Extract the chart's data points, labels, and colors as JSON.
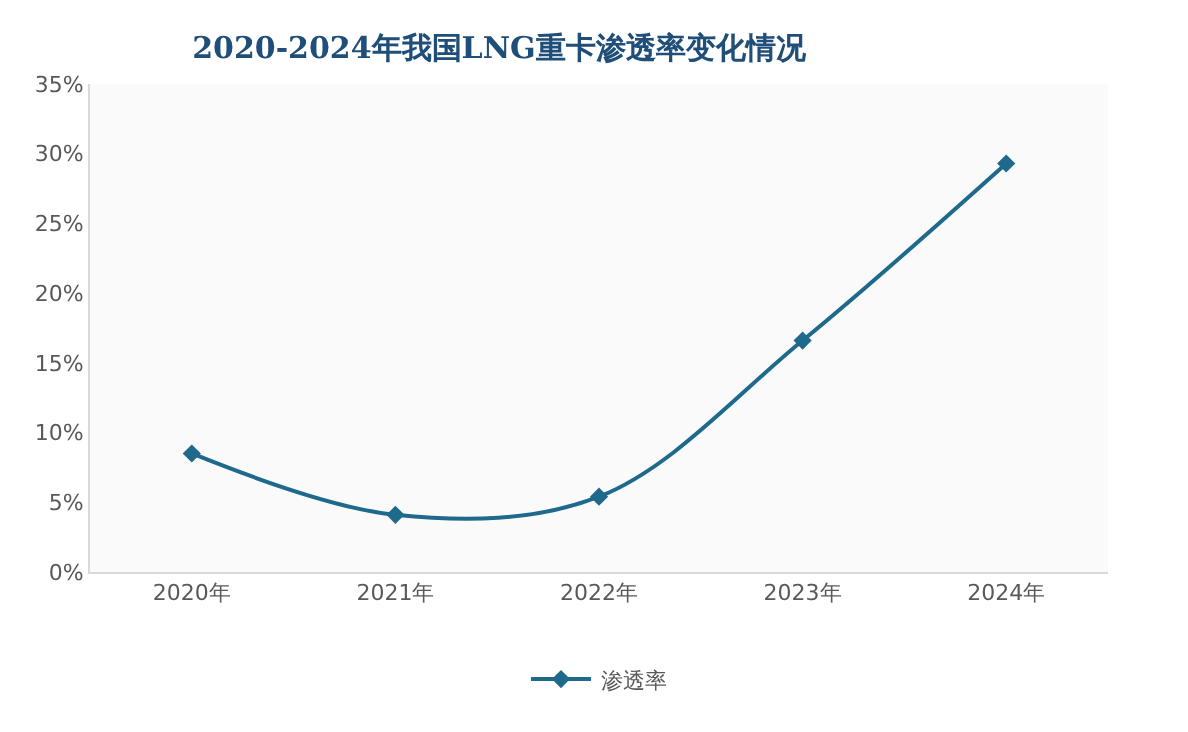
{
  "chart_data": {
    "type": "line",
    "title": "2020-2024年我国LNG重卡渗透率变化情况",
    "categories": [
      "2020年",
      "2021年",
      "2022年",
      "2023年",
      "2024年"
    ],
    "series": [
      {
        "name": "渗透率",
        "color": "#1f6a8c",
        "values": [
          8.5,
          4.1,
          5.4,
          16.6,
          29.3
        ]
      }
    ],
    "ylim": [
      0,
      35
    ],
    "yticks": [
      {
        "value": 0,
        "label": "0%"
      },
      {
        "value": 5,
        "label": "5%"
      },
      {
        "value": 10,
        "label": "10%"
      },
      {
        "value": 15,
        "label": "15%"
      },
      {
        "value": 20,
        "label": "20%"
      },
      {
        "value": 25,
        "label": "25%"
      },
      {
        "value": 30,
        "label": "30%"
      },
      {
        "value": 35,
        "label": "35%"
      }
    ],
    "marker": "diamond",
    "line_style": "solid",
    "legend": "bottom"
  }
}
